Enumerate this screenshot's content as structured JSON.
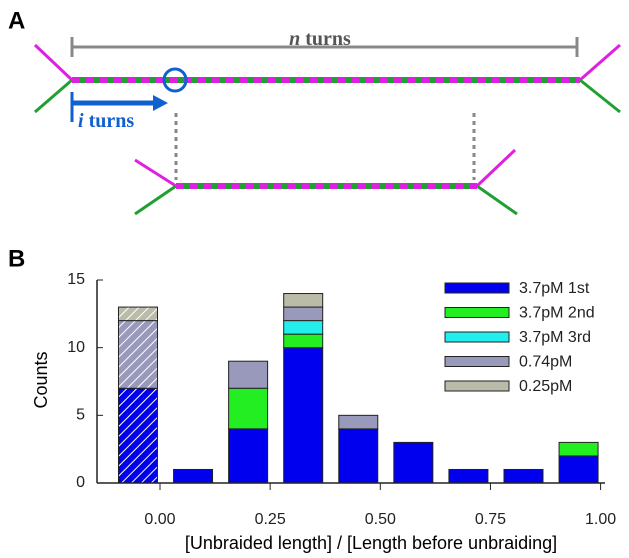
{
  "panel_a": {
    "label": "A",
    "n_label": {
      "var": "n",
      "word": "turns"
    },
    "i_label": {
      "var": "i",
      "word": "turns"
    }
  },
  "chart_data": {
    "type": "bar",
    "panel_label": "B",
    "stacked": true,
    "x": [
      -0.05,
      0.075,
      0.2,
      0.325,
      0.45,
      0.575,
      0.7,
      0.825,
      0.95
    ],
    "hatched": [
      true,
      false,
      false,
      false,
      false,
      false,
      false,
      false,
      false
    ],
    "series": [
      {
        "name": "3.7pM 1st",
        "color": "#0000ee",
        "values": [
          7,
          1,
          4,
          10,
          4,
          3,
          1,
          1,
          2
        ]
      },
      {
        "name": "3.7pM 2nd",
        "color": "#22ee22",
        "values": [
          0,
          0,
          3,
          1,
          0,
          0,
          0,
          0,
          1
        ]
      },
      {
        "name": "3.7pM 3rd",
        "color": "#22eeee",
        "values": [
          0,
          0,
          0,
          1,
          0,
          0,
          0,
          0,
          0
        ]
      },
      {
        "name": "0.74pM",
        "color": "#9999bb",
        "values": [
          5,
          0,
          2,
          1,
          1,
          0,
          0,
          0,
          0
        ]
      },
      {
        "name": "0.25pM",
        "color": "#bbbbaa",
        "values": [
          1,
          0,
          0,
          1,
          0,
          0,
          0,
          0,
          0
        ]
      }
    ],
    "xlim": [
      -0.143,
      1.01
    ],
    "ylim": [
      0,
      15
    ],
    "yticks": [
      0,
      5,
      10,
      15
    ],
    "xticks": [
      {
        "value": 0,
        "label": "0.00"
      },
      {
        "value": 0.25,
        "label": "0.25"
      },
      {
        "value": 0.5,
        "label": "0.50"
      },
      {
        "value": 0.75,
        "label": "0.75"
      },
      {
        "value": 1,
        "label": "1.00"
      }
    ],
    "x_label": "[Unbraided length] / [Length before unbraiding]",
    "y_label": "Counts",
    "legend": "top-right"
  }
}
